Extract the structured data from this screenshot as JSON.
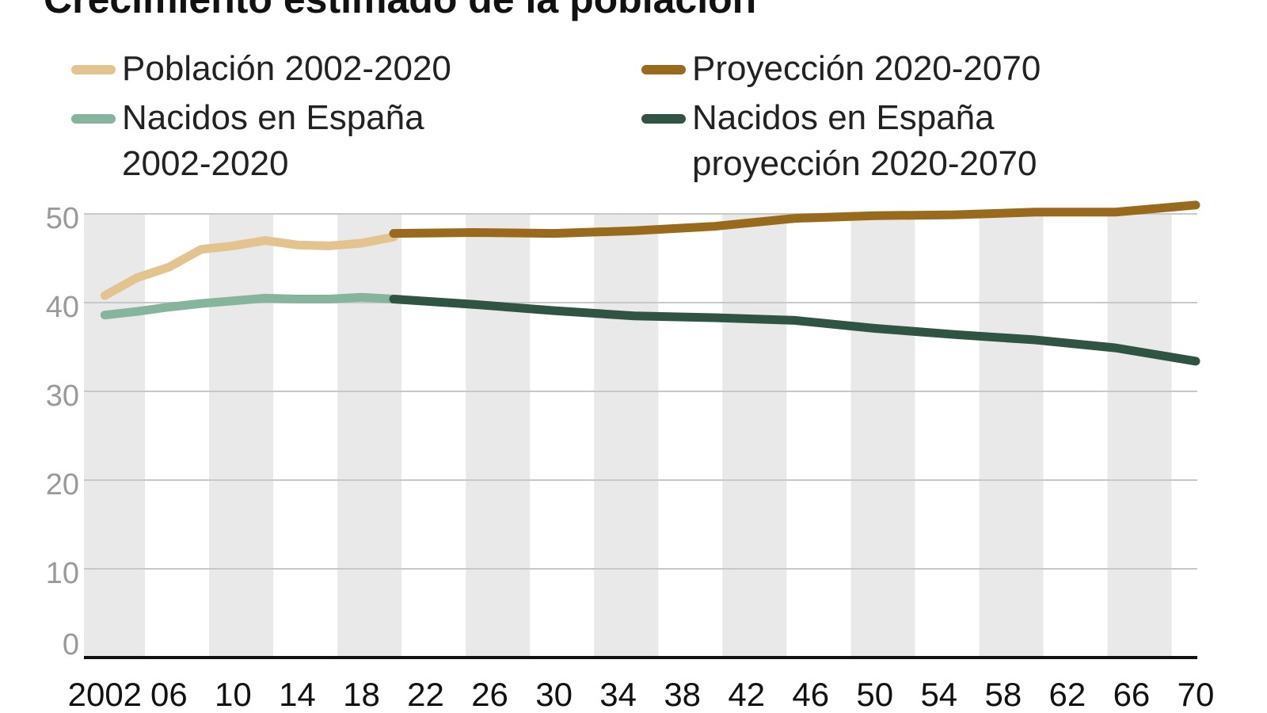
{
  "chart_data": {
    "type": "line",
    "title": "Crecimiento estimado de la población",
    "xlim": [
      2000.7,
      2070.1
    ],
    "ylim": [
      0,
      50
    ],
    "yticks": [
      0,
      10,
      20,
      30,
      40,
      50
    ],
    "xticks": [
      2002,
      {
        "value": 2006,
        "label": "06"
      },
      {
        "value": 2010,
        "label": "10"
      },
      {
        "value": 2014,
        "label": "14"
      },
      {
        "value": 2018,
        "label": "18"
      },
      {
        "value": 2022,
        "label": "22"
      },
      {
        "value": 2026,
        "label": "26"
      },
      {
        "value": 2030,
        "label": "30"
      },
      {
        "value": 2034,
        "label": "34"
      },
      {
        "value": 2038,
        "label": "38"
      },
      {
        "value": 2042,
        "label": "42"
      },
      {
        "value": 2046,
        "label": "46"
      },
      {
        "value": 2050,
        "label": "50"
      },
      {
        "value": 2054,
        "label": "54"
      },
      {
        "value": 2058,
        "label": "58"
      },
      {
        "value": 2062,
        "label": "62"
      },
      {
        "value": 2066,
        "label": "66"
      },
      {
        "value": 2070,
        "label": "70"
      }
    ],
    "grid": true,
    "series": [
      {
        "name": "Población 2002-2020",
        "color": "#e3c48e",
        "x": [
          2002,
          2004,
          2006,
          2008,
          2010,
          2012,
          2014,
          2016,
          2018,
          2020
        ],
        "values": [
          40.8,
          42.8,
          44.0,
          46.0,
          46.4,
          47.0,
          46.5,
          46.4,
          46.7,
          47.4
        ]
      },
      {
        "name": "Proyección 2020-2070",
        "color": "#9a6a1c",
        "x": [
          2020,
          2025,
          2030,
          2035,
          2040,
          2045,
          2050,
          2055,
          2060,
          2065,
          2070
        ],
        "values": [
          47.8,
          47.9,
          47.8,
          48.1,
          48.6,
          49.5,
          49.8,
          49.9,
          50.2,
          50.2,
          51.0
        ]
      },
      {
        "name": "Nacidos en España 2002-2020",
        "color": "#86b59e",
        "x": [
          2002,
          2004,
          2006,
          2008,
          2010,
          2012,
          2014,
          2016,
          2018,
          2020
        ],
        "values": [
          38.6,
          39.0,
          39.5,
          39.9,
          40.2,
          40.5,
          40.4,
          40.4,
          40.6,
          40.4
        ]
      },
      {
        "name": "Nacidos en España proyección 2020-2070",
        "color": "#2f5443",
        "x": [
          2020,
          2025,
          2030,
          2035,
          2040,
          2045,
          2050,
          2055,
          2060,
          2065,
          2070
        ],
        "values": [
          40.4,
          39.8,
          39.1,
          38.5,
          38.3,
          38.0,
          37.1,
          36.4,
          35.8,
          34.9,
          33.4
        ]
      }
    ]
  }
}
